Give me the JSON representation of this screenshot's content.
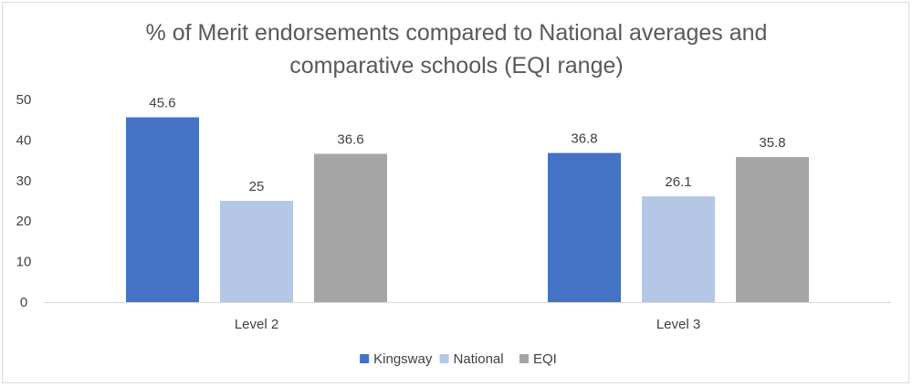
{
  "chart_data": {
    "type": "bar",
    "title": "% of Merit endorsements compared to National averages and comparative schools (EQI range)",
    "title_lines": [
      "% of Merit endorsements compared to National averages and",
      "comparative schools (EQI range)"
    ],
    "categories": [
      "Level 2",
      "Level 3"
    ],
    "series": [
      {
        "name": "Kingsway",
        "values": [
          45.6,
          36.8
        ],
        "color": "#4472c4"
      },
      {
        "name": "National",
        "values": [
          25,
          26.1
        ],
        "color": "#b4c7e7"
      },
      {
        "name": "EQI",
        "values": [
          36.6,
          35.8
        ],
        "color": "#a5a5a5"
      }
    ],
    "y_ticks": [
      0,
      10,
      20,
      30,
      40,
      50
    ],
    "ylim": [
      0,
      50
    ],
    "xlabel": "",
    "ylabel": "",
    "grid": false,
    "legend_position": "bottom"
  }
}
